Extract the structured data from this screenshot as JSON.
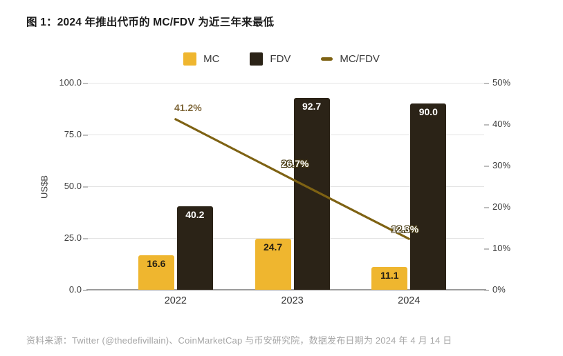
{
  "title": "图 1：2024 年推出代币的 MC/FDV 为近三年来最低",
  "source": "资料来源：Twitter (@thedefivillain)、CoinMarketCap 与币安研究院，数据发布日期为 2024 年 4 月 14 日",
  "colors": {
    "mc_bar": "#efb62f",
    "fdv_bar": "#2b2317",
    "line": "#7e6213",
    "grid": "#e3e3e3",
    "axis": "#9b9b9b",
    "title_text": "#1a1a1a",
    "source_text": "#a6a6a6"
  },
  "chart_data": {
    "type": "bar",
    "subtype": "grouped-bars-with-line-overlay-dual-axis",
    "categories": [
      "2022",
      "2023",
      "2024"
    ],
    "series": [
      {
        "name": "MC",
        "type": "bar",
        "axis": "left",
        "color": "#efb62f",
        "values": [
          16.6,
          24.7,
          11.1
        ],
        "value_labels": [
          "16.6",
          "24.7",
          "11.1"
        ],
        "label_color": "#262014"
      },
      {
        "name": "FDV",
        "type": "bar",
        "axis": "left",
        "color": "#2b2317",
        "values": [
          40.2,
          92.7,
          90.0
        ],
        "value_labels": [
          "40.2",
          "92.7",
          "90.0"
        ],
        "label_color": "#ffffff"
      },
      {
        "name": "MC/FDV",
        "type": "line",
        "axis": "right",
        "color": "#7e6213",
        "values": [
          41.2,
          26.7,
          12.3
        ],
        "value_labels": [
          "41.2%",
          "26.7%",
          "12.3%"
        ]
      }
    ],
    "left_axis": {
      "label": "US$B",
      "range": [
        0,
        100
      ],
      "ticks": [
        0,
        25,
        50,
        75,
        100
      ],
      "tick_labels": [
        "0.0",
        "25.0",
        "50.0",
        "75.0",
        "100.0"
      ]
    },
    "right_axis": {
      "label": "",
      "range": [
        0,
        50
      ],
      "ticks": [
        0,
        10,
        20,
        30,
        40,
        50
      ],
      "tick_labels": [
        "0%",
        "10%",
        "20%",
        "30%",
        "40%",
        "50%"
      ]
    },
    "grid": "horizontal",
    "legend_position": "top-center"
  }
}
